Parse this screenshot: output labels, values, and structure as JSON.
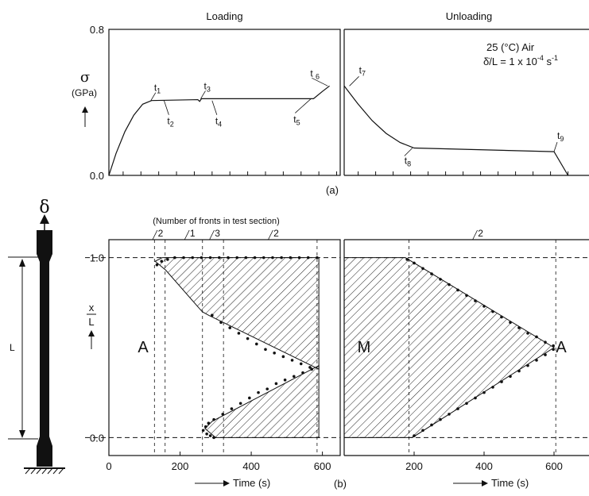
{
  "figure": {
    "a_label": "(a)",
    "b_label": "(b)",
    "delta_symbol": "δ",
    "specimen_length_label": "L"
  },
  "chart_data": [
    {
      "id": "a-loading",
      "type": "line",
      "title": "Loading",
      "ylabel_symbol": "σ",
      "ylabel_unit": "(GPa)",
      "ylim": [
        0,
        0.8
      ],
      "y_ticks": [
        {
          "value": 0.0,
          "label": "0.0"
        },
        {
          "value": 0.8,
          "label": "0.8"
        }
      ],
      "xlim": [
        0,
        650
      ],
      "x_minor_ticks": [
        40,
        90,
        140,
        190,
        240,
        290,
        340,
        390,
        440,
        490,
        540,
        590,
        640
      ],
      "series": [
        {
          "values": [
            [
              0,
              0
            ],
            [
              20,
              0.12
            ],
            [
              45,
              0.24
            ],
            [
              70,
              0.33
            ],
            [
              95,
              0.39
            ],
            [
              120,
              0.41
            ],
            [
              250,
              0.415
            ],
            [
              255,
              0.405
            ],
            [
              260,
              0.42
            ],
            [
              575,
              0.42
            ],
            [
              600,
              0.46
            ],
            [
              620,
              0.49
            ]
          ]
        }
      ],
      "annotations": [
        {
          "text": "t",
          "sub": "1",
          "x": 118,
          "y": 0.41
        },
        {
          "text": "t",
          "sub": "2",
          "x": 155,
          "y": 0.41
        },
        {
          "text": "t",
          "sub": "3",
          "x": 258,
          "y": 0.42
        },
        {
          "text": "t",
          "sub": "4",
          "x": 290,
          "y": 0.41
        },
        {
          "text": "t",
          "sub": "5",
          "x": 568,
          "y": 0.42
        },
        {
          "text": "t ",
          "sub": "6",
          "x": 615,
          "y": 0.49
        }
      ]
    },
    {
      "id": "a-unloading",
      "type": "line",
      "title": "Unloading",
      "legend_text_1": "25 (°C) Air",
      "legend_text_2": "δ̇/L = 1 x 10",
      "legend_exp": "-4",
      "legend_unit": " s",
      "legend_unit_exp": "-1",
      "ylim": [
        0,
        0.8
      ],
      "xlim": [
        0,
        700
      ],
      "x_minor_ticks": [
        40,
        90,
        140,
        190,
        240,
        290,
        340,
        390,
        440,
        490,
        540,
        590,
        640
      ],
      "series": [
        {
          "values": [
            [
              0,
              0.49
            ],
            [
              40,
              0.39
            ],
            [
              80,
              0.3
            ],
            [
              120,
              0.23
            ],
            [
              160,
              0.18
            ],
            [
              200,
              0.15
            ],
            [
              600,
              0.13
            ],
            [
              640,
              0
            ]
          ]
        }
      ],
      "annotations": [
        {
          "text": "t",
          "sub": "7",
          "x": 15,
          "y": 0.49
        },
        {
          "text": "t",
          "sub": "8",
          "x": 195,
          "y": 0.15
        },
        {
          "text": "t",
          "sub": "9",
          "x": 600,
          "y": 0.13
        }
      ]
    },
    {
      "id": "b-loading",
      "type": "area",
      "top_label": "(Number of fronts in test section)",
      "front_counts": [
        {
          "label": "2",
          "x": 145
        },
        {
          "label": "1",
          "x": 235
        },
        {
          "label": "3",
          "x": 305
        },
        {
          "label": "2",
          "x": 470
        }
      ],
      "ylabel_num": "x",
      "ylabel_den": "L",
      "xlabel": "Time (s)",
      "xlim": [
        0,
        650
      ],
      "ylim": [
        -0.1,
        1.1
      ],
      "x_ticks": [
        {
          "value": 0,
          "label": "0"
        },
        {
          "value": 200,
          "label": "200"
        },
        {
          "value": 400,
          "label": "400"
        },
        {
          "value": 600,
          "label": "600"
        }
      ],
      "y_ticks": [
        {
          "value": 0.0,
          "label": "0.0"
        },
        {
          "value": 1.0,
          "label": "1.0"
        }
      ],
      "vertical_dashed_x": [
        128,
        158,
        263,
        322,
        585
      ],
      "region_label": "A",
      "upper_region": [
        [
          130,
          0.98
        ],
        [
          150,
          1.0
        ],
        [
          590,
          1.0
        ],
        [
          590,
          0.38
        ],
        [
          280,
          0.68
        ],
        [
          262,
          0.7
        ],
        [
          160,
          0.93
        ]
      ],
      "lower_region": [
        [
          270,
          0.05
        ],
        [
          290,
          0.09
        ],
        [
          590,
          0.4
        ],
        [
          590,
          0.0
        ],
        [
          300,
          0.0
        ]
      ],
      "front_points": [
        [
          135,
          0.96
        ],
        [
          148,
          0.98
        ],
        [
          165,
          0.99
        ],
        [
          185,
          1.0
        ],
        [
          210,
          1.0
        ],
        [
          235,
          1.0
        ],
        [
          260,
          1.0
        ],
        [
          285,
          1.0
        ],
        [
          310,
          1.0
        ],
        [
          335,
          1.0
        ],
        [
          360,
          1.0
        ],
        [
          385,
          1.0
        ],
        [
          410,
          1.0
        ],
        [
          435,
          1.0
        ],
        [
          460,
          1.0
        ],
        [
          485,
          1.0
        ],
        [
          510,
          1.0
        ],
        [
          535,
          1.0
        ],
        [
          560,
          1.0
        ],
        [
          585,
          1.0
        ],
        [
          290,
          0.68
        ],
        [
          315,
          0.64
        ],
        [
          340,
          0.61
        ],
        [
          365,
          0.58
        ],
        [
          390,
          0.55
        ],
        [
          415,
          0.52
        ],
        [
          440,
          0.49
        ],
        [
          465,
          0.47
        ],
        [
          490,
          0.45
        ],
        [
          515,
          0.43
        ],
        [
          540,
          0.41
        ],
        [
          565,
          0.39
        ],
        [
          265,
          0.04
        ],
        [
          272,
          0.06
        ],
        [
          280,
          0.08
        ],
        [
          295,
          0.1
        ],
        [
          320,
          0.13
        ],
        [
          345,
          0.16
        ],
        [
          370,
          0.19
        ],
        [
          395,
          0.22
        ],
        [
          420,
          0.25
        ],
        [
          445,
          0.27
        ],
        [
          470,
          0.3
        ],
        [
          495,
          0.32
        ],
        [
          520,
          0.34
        ],
        [
          545,
          0.36
        ],
        [
          570,
          0.38
        ],
        [
          275,
          0.02
        ],
        [
          285,
          0.01
        ],
        [
          295,
          0.0
        ]
      ]
    },
    {
      "id": "b-unloading",
      "type": "area",
      "front_count": {
        "label": "2",
        "x": 390
      },
      "xlabel": "Time (s)",
      "xlim": [
        0,
        700
      ],
      "ylim": [
        -0.1,
        1.1
      ],
      "x_ticks": [
        {
          "value": 200,
          "label": "200"
        },
        {
          "value": 400,
          "label": "400"
        },
        {
          "value": 600,
          "label": "600"
        }
      ],
      "vertical_dashed_x": [
        185,
        605
      ],
      "region_label_left": "M",
      "region_label_right": "A",
      "region": [
        [
          0,
          0.0
        ],
        [
          0,
          1.0
        ],
        [
          175,
          1.0
        ],
        [
          600,
          0.5
        ],
        [
          195,
          0.0
        ]
      ],
      "front_points": [
        [
          180,
          0.99
        ],
        [
          200,
          0.97
        ],
        [
          225,
          0.94
        ],
        [
          250,
          0.91
        ],
        [
          275,
          0.88
        ],
        [
          300,
          0.85
        ],
        [
          325,
          0.82
        ],
        [
          350,
          0.79
        ],
        [
          375,
          0.76
        ],
        [
          400,
          0.73
        ],
        [
          425,
          0.7
        ],
        [
          450,
          0.67
        ],
        [
          475,
          0.64
        ],
        [
          500,
          0.61
        ],
        [
          525,
          0.58
        ],
        [
          550,
          0.56
        ],
        [
          575,
          0.53
        ],
        [
          598,
          0.51
        ],
        [
          200,
          0.01
        ],
        [
          225,
          0.04
        ],
        [
          250,
          0.07
        ],
        [
          275,
          0.1
        ],
        [
          300,
          0.13
        ],
        [
          325,
          0.16
        ],
        [
          350,
          0.19
        ],
        [
          375,
          0.22
        ],
        [
          400,
          0.25
        ],
        [
          425,
          0.28
        ],
        [
          450,
          0.31
        ],
        [
          475,
          0.34
        ],
        [
          500,
          0.37
        ],
        [
          525,
          0.4
        ],
        [
          550,
          0.43
        ],
        [
          575,
          0.46
        ],
        [
          598,
          0.49
        ]
      ]
    }
  ]
}
